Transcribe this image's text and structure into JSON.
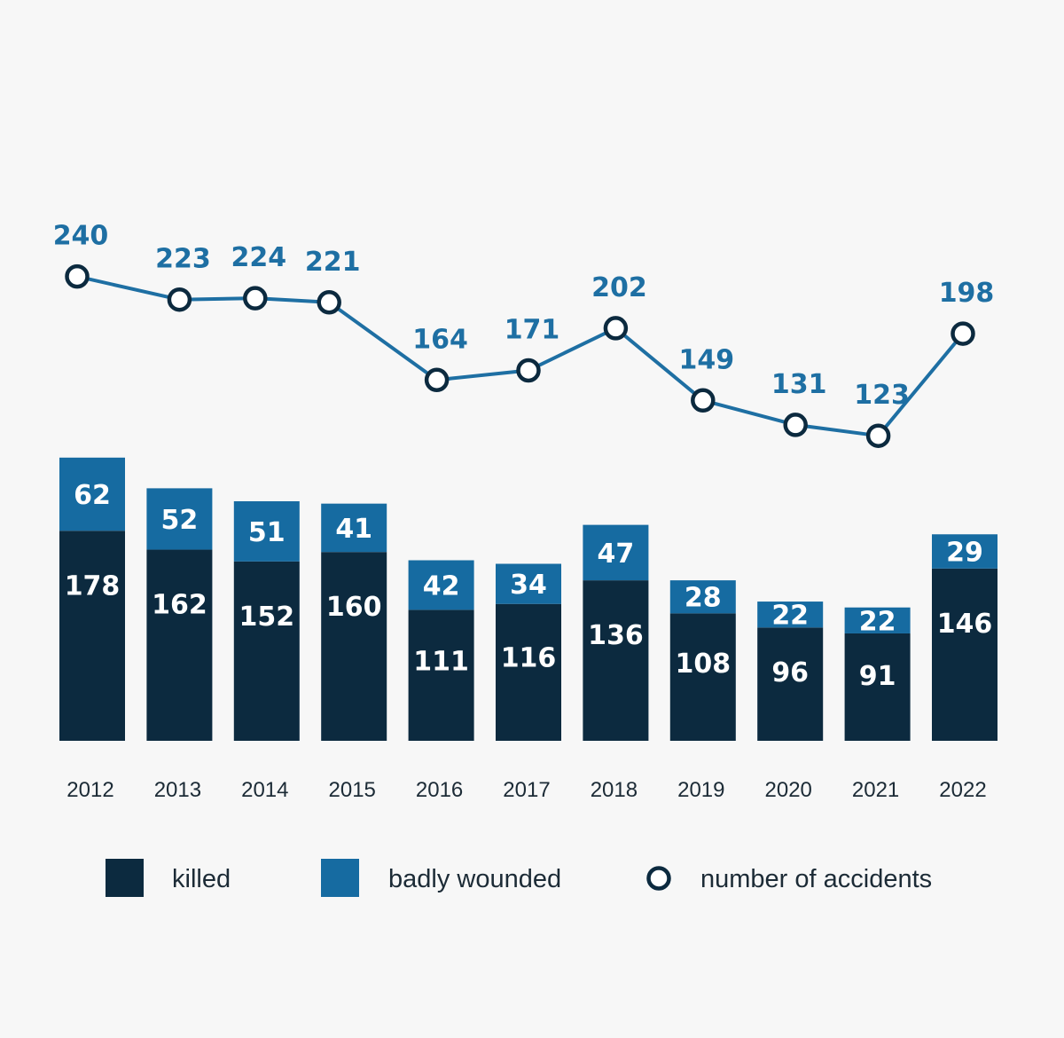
{
  "chart_data": {
    "type": "bar",
    "stacked": true,
    "categories": [
      "2012",
      "2013",
      "2014",
      "2015",
      "2016",
      "2017",
      "2018",
      "2019",
      "2020",
      "2021",
      "2022"
    ],
    "series": [
      {
        "name": "killed",
        "type": "bar",
        "color": "#0c2a3f",
        "values": [
          178,
          162,
          152,
          160,
          111,
          116,
          136,
          108,
          96,
          91,
          146
        ]
      },
      {
        "name": "badly wounded",
        "type": "bar",
        "color": "#166ba1",
        "values": [
          62,
          52,
          51,
          41,
          42,
          34,
          47,
          28,
          22,
          22,
          29
        ]
      },
      {
        "name": "number of accidents",
        "type": "line",
        "color": "#1e6fa3",
        "marker": "open-circle",
        "values": [
          240,
          223,
          224,
          221,
          164,
          171,
          202,
          149,
          131,
          123,
          198
        ]
      }
    ],
    "title": "",
    "xlabel": "",
    "ylabel": "",
    "grid": false,
    "legend_position": "bottom",
    "colors": {
      "background": "#f7f7f7",
      "killed": "#0c2a3f",
      "badly_wounded": "#166ba1",
      "line": "#1e6fa3",
      "marker_stroke": "#0c2a3f",
      "marker_fill": "#ffffff",
      "tick_text": "#1c2b36"
    }
  }
}
